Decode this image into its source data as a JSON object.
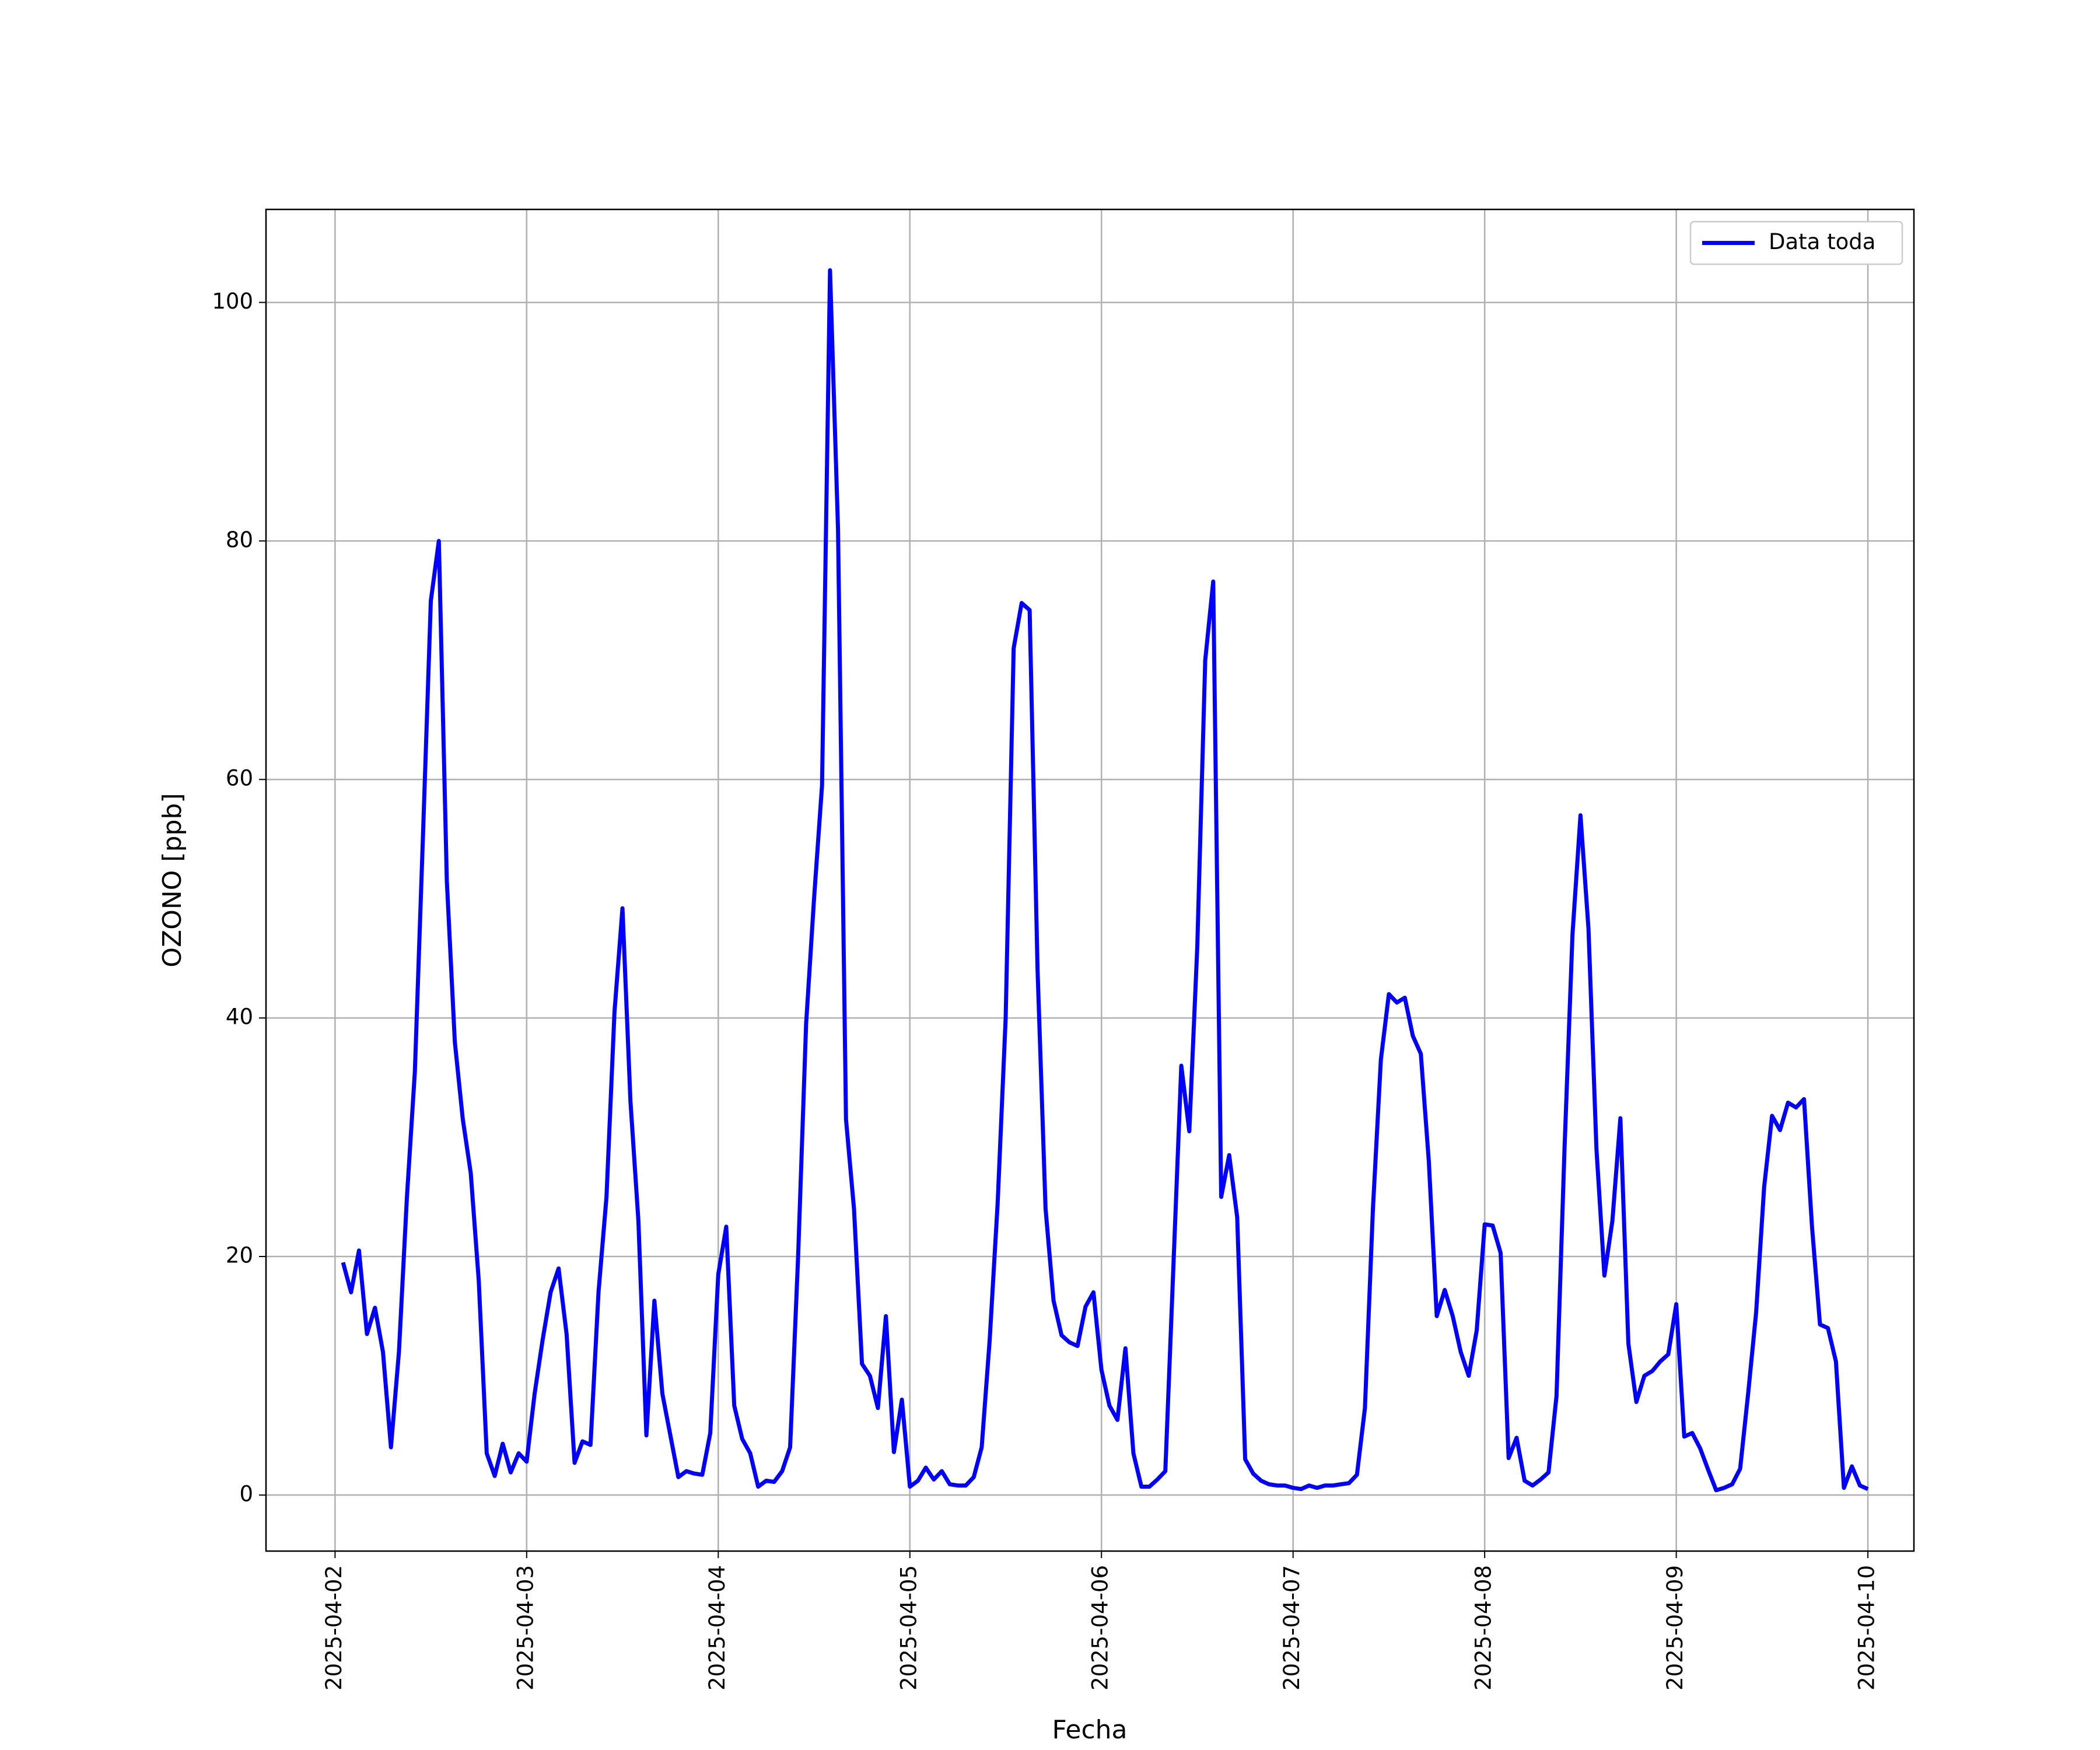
{
  "chart_data": {
    "type": "line",
    "xlabel": "Fecha",
    "ylabel": "OZONO [ppb]",
    "x": [
      "2025-04-02 01:00",
      "2025-04-02 02:00",
      "2025-04-02 03:00",
      "2025-04-02 04:00",
      "2025-04-02 05:00",
      "2025-04-02 06:00",
      "2025-04-02 07:00",
      "2025-04-02 08:00",
      "2025-04-02 09:00",
      "2025-04-02 10:00",
      "2025-04-02 11:00",
      "2025-04-02 12:00",
      "2025-04-02 13:00",
      "2025-04-02 14:00",
      "2025-04-02 15:00",
      "2025-04-02 16:00",
      "2025-04-02 17:00",
      "2025-04-02 18:00",
      "2025-04-02 19:00",
      "2025-04-02 20:00",
      "2025-04-02 21:00",
      "2025-04-02 22:00",
      "2025-04-02 23:00",
      "2025-04-03 00:00",
      "2025-04-03 01:00",
      "2025-04-03 02:00",
      "2025-04-03 03:00",
      "2025-04-03 04:00",
      "2025-04-03 05:00",
      "2025-04-03 06:00",
      "2025-04-03 07:00",
      "2025-04-03 08:00",
      "2025-04-03 09:00",
      "2025-04-03 10:00",
      "2025-04-03 11:00",
      "2025-04-03 12:00",
      "2025-04-03 13:00",
      "2025-04-03 14:00",
      "2025-04-03 15:00",
      "2025-04-03 16:00",
      "2025-04-03 17:00",
      "2025-04-03 18:00",
      "2025-04-03 19:00",
      "2025-04-03 20:00",
      "2025-04-03 21:00",
      "2025-04-03 22:00",
      "2025-04-03 23:00",
      "2025-04-04 00:00",
      "2025-04-04 01:00",
      "2025-04-04 02:00",
      "2025-04-04 03:00",
      "2025-04-04 04:00",
      "2025-04-04 05:00",
      "2025-04-04 06:00",
      "2025-04-04 07:00",
      "2025-04-04 08:00",
      "2025-04-04 09:00",
      "2025-04-04 10:00",
      "2025-04-04 11:00",
      "2025-04-04 12:00",
      "2025-04-04 13:00",
      "2025-04-04 14:00",
      "2025-04-04 15:00",
      "2025-04-04 16:00",
      "2025-04-04 17:00",
      "2025-04-04 18:00",
      "2025-04-04 19:00",
      "2025-04-04 20:00",
      "2025-04-04 21:00",
      "2025-04-04 22:00",
      "2025-04-04 23:00",
      "2025-04-05 00:00",
      "2025-04-05 01:00",
      "2025-04-05 02:00",
      "2025-04-05 03:00",
      "2025-04-05 04:00",
      "2025-04-05 05:00",
      "2025-04-05 06:00",
      "2025-04-05 07:00",
      "2025-04-05 08:00",
      "2025-04-05 09:00",
      "2025-04-05 10:00",
      "2025-04-05 11:00",
      "2025-04-05 12:00",
      "2025-04-05 13:00",
      "2025-04-05 14:00",
      "2025-04-05 15:00",
      "2025-04-05 16:00",
      "2025-04-05 17:00",
      "2025-04-05 18:00",
      "2025-04-05 19:00",
      "2025-04-05 20:00",
      "2025-04-05 21:00",
      "2025-04-05 22:00",
      "2025-04-05 23:00",
      "2025-04-06 00:00",
      "2025-04-06 01:00",
      "2025-04-06 02:00",
      "2025-04-06 03:00",
      "2025-04-06 04:00",
      "2025-04-06 05:00",
      "2025-04-06 06:00",
      "2025-04-06 07:00",
      "2025-04-06 08:00",
      "2025-04-06 09:00",
      "2025-04-06 10:00",
      "2025-04-06 11:00",
      "2025-04-06 12:00",
      "2025-04-06 13:00",
      "2025-04-06 14:00",
      "2025-04-06 15:00",
      "2025-04-06 16:00",
      "2025-04-06 17:00",
      "2025-04-06 18:00",
      "2025-04-06 19:00",
      "2025-04-06 20:00",
      "2025-04-06 21:00",
      "2025-04-06 22:00",
      "2025-04-06 23:00",
      "2025-04-07 00:00",
      "2025-04-07 01:00",
      "2025-04-07 02:00",
      "2025-04-07 03:00",
      "2025-04-07 04:00",
      "2025-04-07 05:00",
      "2025-04-07 06:00",
      "2025-04-07 07:00",
      "2025-04-07 08:00",
      "2025-04-07 09:00",
      "2025-04-07 10:00",
      "2025-04-07 11:00",
      "2025-04-07 12:00",
      "2025-04-07 13:00",
      "2025-04-07 14:00",
      "2025-04-07 15:00",
      "2025-04-07 16:00",
      "2025-04-07 17:00",
      "2025-04-07 18:00",
      "2025-04-07 19:00",
      "2025-04-07 20:00",
      "2025-04-07 21:00",
      "2025-04-07 22:00",
      "2025-04-07 23:00",
      "2025-04-08 00:00",
      "2025-04-08 01:00",
      "2025-04-08 02:00",
      "2025-04-08 03:00",
      "2025-04-08 04:00",
      "2025-04-08 05:00",
      "2025-04-08 06:00",
      "2025-04-08 07:00",
      "2025-04-08 08:00",
      "2025-04-08 09:00",
      "2025-04-08 10:00",
      "2025-04-08 11:00",
      "2025-04-08 12:00",
      "2025-04-08 13:00",
      "2025-04-08 14:00",
      "2025-04-08 15:00",
      "2025-04-08 16:00",
      "2025-04-08 17:00",
      "2025-04-08 18:00",
      "2025-04-08 19:00",
      "2025-04-08 20:00",
      "2025-04-08 21:00",
      "2025-04-08 22:00",
      "2025-04-08 23:00",
      "2025-04-09 00:00",
      "2025-04-09 01:00",
      "2025-04-09 02:00",
      "2025-04-09 03:00",
      "2025-04-09 04:00",
      "2025-04-09 05:00",
      "2025-04-09 06:00",
      "2025-04-09 07:00",
      "2025-04-09 08:00",
      "2025-04-09 09:00",
      "2025-04-09 10:00",
      "2025-04-09 11:00",
      "2025-04-09 12:00",
      "2025-04-09 13:00",
      "2025-04-09 14:00",
      "2025-04-09 15:00",
      "2025-04-09 16:00",
      "2025-04-09 17:00",
      "2025-04-09 18:00",
      "2025-04-09 19:00",
      "2025-04-09 20:00",
      "2025-04-09 21:00",
      "2025-04-09 22:00",
      "2025-04-09 23:00",
      "2025-04-10 00:00"
    ],
    "series": [
      {
        "name": "Data toda",
        "color": "#0000ff",
        "values": [
          19.5,
          17,
          20.5,
          13.5,
          15.7,
          12,
          4,
          12,
          25,
          35.5,
          55,
          75,
          80,
          51.5,
          38,
          31.5,
          27,
          18,
          3.5,
          1.6,
          4.3,
          1.9,
          3.5,
          2.8,
          8.5,
          13,
          17,
          19,
          13.5,
          2.7,
          4.5,
          4.2,
          17,
          25,
          40.5,
          49.2,
          33,
          23,
          5,
          16.3,
          8.5,
          5,
          1.5,
          2,
          1.8,
          1.7,
          5.2,
          18.5,
          22.5,
          7.5,
          4.7,
          3.5,
          0.7,
          1.2,
          1.1,
          2,
          4,
          20,
          39.5,
          50,
          59.5,
          102.7,
          81,
          31.5,
          24,
          11,
          10,
          7.3,
          15,
          3.6,
          8,
          0.7,
          1.2,
          2.3,
          1.3,
          2,
          0.9,
          0.8,
          0.8,
          1.5,
          4,
          13,
          24.5,
          40,
          71,
          74.8,
          74.2,
          44,
          24,
          16.3,
          13.4,
          12.8,
          12.5,
          15.8,
          17,
          10.5,
          7.5,
          6.3,
          12.3,
          3.5,
          0.7,
          0.7,
          1.3,
          2,
          19,
          36,
          30.5,
          46,
          70,
          76.6,
          25,
          28.5,
          23.3,
          3,
          1.8,
          1.2,
          0.9,
          0.8,
          0.8,
          0.6,
          0.5,
          0.8,
          0.6,
          0.8,
          0.8,
          0.9,
          1,
          1.7,
          7.3,
          24,
          36.5,
          42,
          41.3,
          41.7,
          38.5,
          37,
          28,
          15,
          17.2,
          15,
          12,
          10,
          13.8,
          22.7,
          22.6,
          20.3,
          3.1,
          4.8,
          1.2,
          0.8,
          1.3,
          1.9,
          8.3,
          29,
          47,
          57,
          47.5,
          29,
          18.4,
          23,
          31.6,
          12.7,
          7.8,
          10,
          10.4,
          11.2,
          11.8,
          16,
          4.9,
          5.2,
          3.9,
          2.1,
          0.4,
          0.6,
          0.9,
          2.2,
          8.5,
          15.3,
          25.8,
          31.8,
          30.6,
          32.9,
          32.5,
          33.2,
          22.5,
          14.3,
          14,
          11.2,
          0.6,
          2.4,
          0.8,
          0.5
        ]
      }
    ],
    "xlim": [
      "2025-04-01 15:21",
      "2025-04-10 05:46"
    ],
    "xticks": [
      "2025-04-02",
      "2025-04-03",
      "2025-04-04",
      "2025-04-05",
      "2025-04-06",
      "2025-04-07",
      "2025-04-08",
      "2025-04-09",
      "2025-04-10"
    ],
    "ylim": [
      -4.7,
      107.8
    ],
    "yticks": [
      0,
      20,
      40,
      60,
      80,
      100
    ],
    "grid": true,
    "legend": "upper right"
  }
}
